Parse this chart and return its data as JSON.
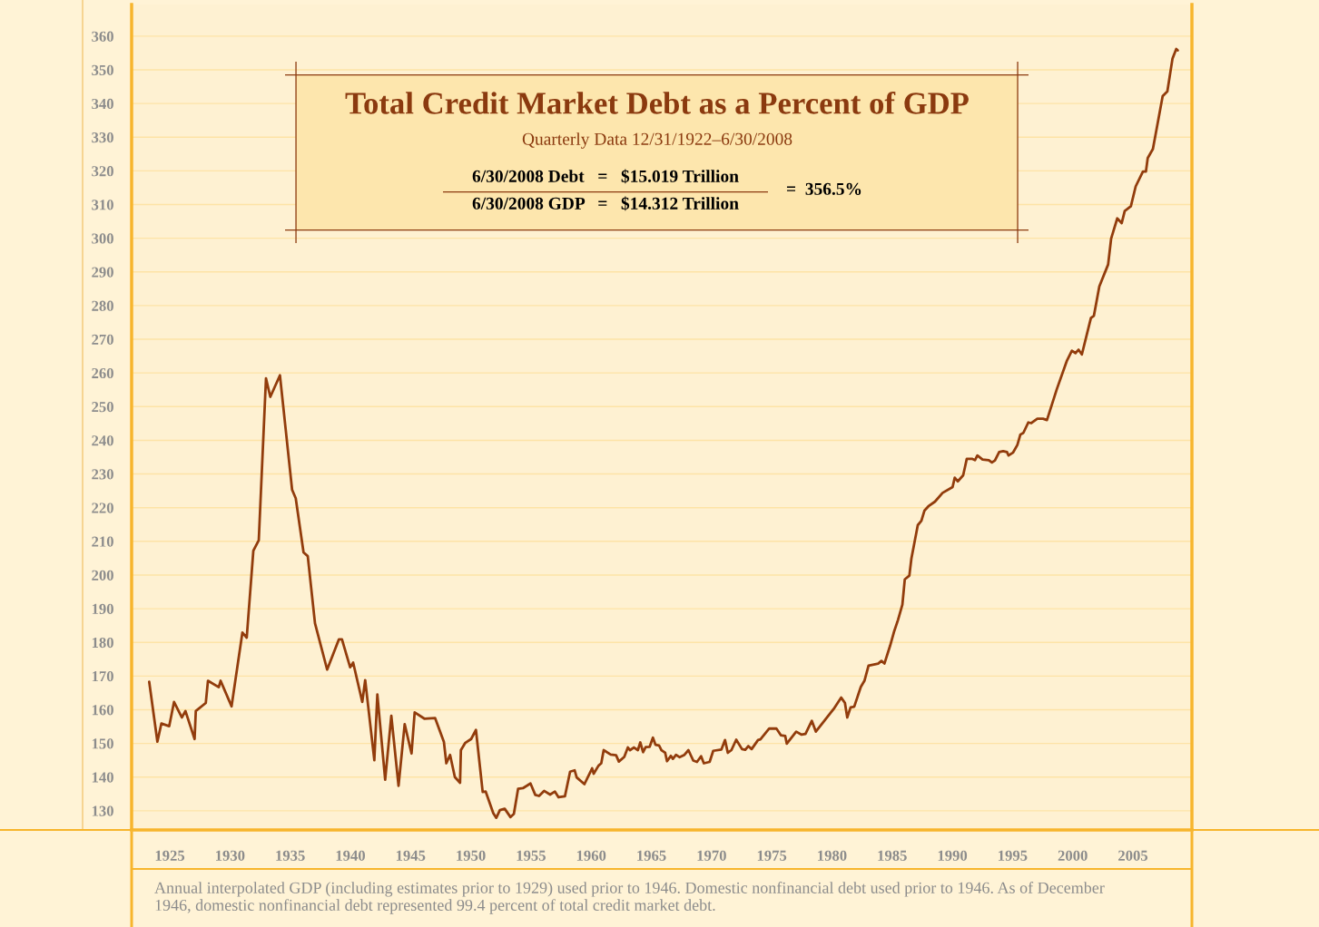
{
  "chart_data": {
    "type": "line",
    "title": "Total Credit Market Debt as a Percent of GDP",
    "subtitle": "Quarterly Data 12/31/1922–6/30/2008",
    "annotations": [
      "6/30/2008 Debt   =   $15.019 Trillion",
      "6/30/2008 GDP   =   $14.312 Trillion",
      "=  356.5%",
      "Annual interpolated GDP (including estimates prior to 1929) used prior to 1946. Domestic nonfinancial debt used prior to 1946. As of December 1946, domestic nonfinancial debt represented 99.4 percent of total credit market debt."
    ],
    "x": [
      1923.29,
      1923.97,
      1924.3,
      1924.95,
      1925.35,
      1926.0,
      1926.3,
      1927.06,
      1927.16,
      1927.99,
      1928.17,
      1929.07,
      1929.22,
      1930.13,
      1931.03,
      1931.39,
      1931.94,
      1932.39,
      1932.99,
      1933.35,
      1934.15,
      1935.16,
      1935.46,
      1936.11,
      1936.46,
      1937.06,
      1938.07,
      1939.05,
      1939.3,
      1939.98,
      1940.23,
      1940.99,
      1941.23,
      1941.99,
      1942.24,
      1942.89,
      1943.4,
      1944.0,
      1944.51,
      1945.08,
      1945.34,
      1946.17,
      1947.04,
      1947.77,
      1947.97,
      1948.28,
      1948.68,
      1949.11,
      1949.18,
      1949.53,
      1950.03,
      1950.43,
      1950.99,
      1951.24,
      1951.87,
      1952.12,
      1952.42,
      1952.82,
      1953.3,
      1953.58,
      1953.93,
      1954.33,
      1954.96,
      1955.36,
      1955.67,
      1956.09,
      1956.59,
      1956.99,
      1957.29,
      1957.82,
      1958.25,
      1958.63,
      1958.8,
      1959.44,
      1960.08,
      1960.21,
      1960.61,
      1960.84,
      1961.04,
      1961.62,
      1962.07,
      1962.3,
      1962.75,
      1963.05,
      1963.23,
      1963.55,
      1963.88,
      1964.08,
      1964.31,
      1964.53,
      1964.86,
      1965.13,
      1965.34,
      1965.64,
      1965.84,
      1966.15,
      1966.3,
      1966.62,
      1966.79,
      1967.05,
      1967.35,
      1967.75,
      1968.08,
      1968.48,
      1968.79,
      1969.13,
      1969.36,
      1969.84,
      1970.14,
      1970.82,
      1971.12,
      1971.35,
      1971.65,
      1972.05,
      1972.53,
      1972.8,
      1973.05,
      1973.33,
      1973.86,
      1974.06,
      1974.79,
      1975.39,
      1975.77,
      1976.12,
      1976.25,
      1977.03,
      1977.48,
      1977.8,
      1978.33,
      1978.66,
      1980.14,
      1980.77,
      1981.08,
      1981.27,
      1981.55,
      1981.85,
      1982.4,
      1982.7,
      1983.04,
      1983.84,
      1984.11,
      1984.36,
      1984.84,
      1985.17,
      1985.49,
      1985.85,
      1986.05,
      1986.43,
      1986.6,
      1987.13,
      1987.43,
      1987.68,
      1988.01,
      1988.56,
      1989.19,
      1990.02,
      1990.2,
      1990.45,
      1990.9,
      1991.2,
      1991.63,
      1991.88,
      1992.08,
      1992.51,
      1993.03,
      1993.29,
      1993.54,
      1993.89,
      1994.22,
      1994.54,
      1994.67,
      1995.05,
      1995.4,
      1995.65,
      1995.9,
      1996.31,
      1996.56,
      1997.06,
      1997.53,
      1997.86,
      1998.67,
      1999.5,
      1999.93,
      2000.23,
      2000.48,
      2000.76,
      2001.51,
      2001.76,
      2002.21,
      2002.94,
      2003.19,
      2003.7,
      2004.07,
      2004.32,
      2004.83,
      2005.23,
      2005.83,
      2006.08,
      2006.23,
      2006.66,
      2007.47,
      2007.86,
      2008.29,
      2008.6,
      2008.72
    ],
    "series": [
      {
        "color": "#923c0c",
        "values": [
          168.3,
          150.5,
          155.9,
          155.1,
          162.3,
          157.7,
          159.6,
          151.3,
          159.6,
          162.0,
          168.6,
          166.7,
          168.6,
          161.0,
          182.9,
          181.4,
          207.2,
          210.3,
          258.4,
          252.9,
          259.3,
          225.3,
          222.8,
          206.7,
          205.6,
          185.7,
          171.9,
          180.9,
          180.9,
          172.6,
          174.0,
          162.3,
          168.8,
          145.0,
          164.5,
          139.2,
          158.2,
          137.4,
          155.7,
          147.0,
          159.2,
          157.3,
          157.5,
          150.4,
          144.1,
          146.6,
          140.0,
          138.3,
          148.0,
          150.1,
          151.3,
          154.0,
          135.6,
          135.7,
          129.3,
          127.9,
          130.2,
          130.6,
          128.1,
          129.1,
          136.5,
          136.7,
          138.1,
          134.7,
          134.4,
          135.9,
          134.8,
          135.7,
          134.0,
          134.3,
          141.6,
          142.0,
          139.9,
          137.9,
          142.6,
          141.0,
          143.4,
          144.1,
          148.0,
          146.7,
          146.5,
          144.6,
          146.0,
          148.8,
          148.0,
          148.8,
          148.0,
          150.3,
          147.4,
          148.9,
          149.0,
          151.7,
          149.6,
          149.4,
          148.0,
          147.2,
          144.7,
          146.3,
          145.4,
          146.6,
          145.9,
          146.6,
          148.0,
          144.9,
          144.5,
          146.2,
          144.1,
          144.5,
          147.8,
          148.2,
          151.0,
          147.2,
          148.0,
          151.1,
          148.3,
          148.1,
          149.2,
          148.3,
          151.0,
          151.2,
          154.4,
          154.4,
          152.4,
          152.2,
          149.9,
          153.5,
          152.6,
          152.8,
          156.7,
          153.5,
          160.2,
          163.6,
          162.0,
          157.7,
          160.7,
          160.9,
          166.8,
          168.6,
          173.1,
          173.7,
          174.5,
          173.7,
          179.1,
          183.3,
          186.7,
          191.2,
          198.7,
          199.8,
          204.9,
          214.8,
          216.1,
          219.1,
          220.4,
          221.8,
          224.4,
          226.1,
          228.9,
          227.8,
          229.6,
          234.5,
          234.5,
          234.1,
          235.5,
          234.3,
          234.1,
          233.4,
          234.0,
          236.5,
          236.8,
          236.5,
          235.5,
          236.4,
          238.6,
          241.7,
          242.2,
          245.3,
          245.1,
          246.4,
          246.4,
          246.0,
          255.1,
          263.5,
          266.6,
          265.9,
          266.9,
          265.5,
          276.3,
          277.0,
          285.7,
          292.2,
          299.9,
          305.9,
          304.5,
          308.1,
          309.5,
          315.4,
          319.8,
          319.8,
          323.8,
          326.5,
          342.2,
          343.6,
          353.4,
          356.2,
          355.8
        ]
      }
    ],
    "xlim": [
      1921.83,
      2009.9
    ],
    "ylim": [
      124.3,
      369.4
    ],
    "xticks": [
      1925,
      1930,
      1935,
      1940,
      1945,
      1950,
      1955,
      1960,
      1965,
      1970,
      1975,
      1980,
      1985,
      1990,
      1995,
      2000,
      2005
    ],
    "yticks": [
      130,
      140,
      150,
      160,
      170,
      180,
      190,
      200,
      210,
      220,
      230,
      240,
      250,
      260,
      270,
      280,
      290,
      300,
      310,
      320,
      330,
      340,
      350,
      360
    ],
    "grid": "y"
  }
}
